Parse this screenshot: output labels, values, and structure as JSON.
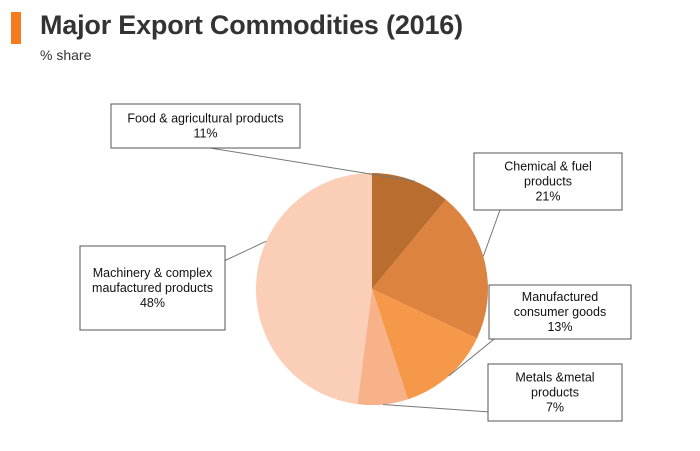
{
  "header": {
    "title": "Major Export Commodities (2016)",
    "subtitle": "% share",
    "accent_color": "#f47b20"
  },
  "chart_data": {
    "type": "pie",
    "title": "Major Export Commodities (2016)",
    "subtitle": "% share",
    "slices": [
      {
        "name": "Food & agricultural products",
        "label_lines": [
          "Food & agricultural products"
        ],
        "value": 11,
        "value_label": "11%",
        "color": "#b96d2f"
      },
      {
        "name": "Chemical & fuel products",
        "label_lines": [
          "Chemical & fuel",
          "products"
        ],
        "value": 21,
        "value_label": "21%",
        "color": "#dc8340"
      },
      {
        "name": "Manufactured consumer goods",
        "label_lines": [
          "Manufactured",
          "consumer goods"
        ],
        "value": 13,
        "value_label": "13%",
        "color": "#f6984a"
      },
      {
        "name": "Metals &metal products",
        "label_lines": [
          "Metals &metal",
          "products"
        ],
        "value": 7,
        "value_label": "7%",
        "color": "#f7b28a"
      },
      {
        "name": "Machinery & complex maufactured products",
        "label_lines": [
          "Machinery & complex",
          "maufactured products"
        ],
        "value": 48,
        "value_label": "48%",
        "color": "#fbcfb7"
      }
    ]
  }
}
